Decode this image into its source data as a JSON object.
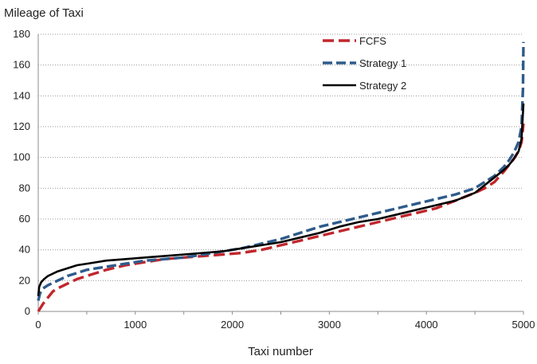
{
  "chart_data": {
    "type": "line",
    "title": "",
    "ylabel": "Mileage of Taxi",
    "xlabel": "Taxi number",
    "xlim": [
      0,
      5000
    ],
    "ylim": [
      0,
      180
    ],
    "x_ticks": [
      "0",
      "1000",
      "2000",
      "3000",
      "4000",
      "5000"
    ],
    "y_ticks": [
      "0",
      "20",
      "40",
      "60",
      "80",
      "100",
      "120",
      "140",
      "160",
      "180"
    ],
    "grid": "horizontal dotted",
    "legend": "top-right",
    "series": [
      {
        "name": "FCFS",
        "color": "#c0272d",
        "style": "dashed",
        "x": [
          0,
          50,
          100,
          150,
          200,
          300,
          400,
          500,
          700,
          900,
          1100,
          1300,
          1500,
          1700,
          1900,
          2100,
          2300,
          2500,
          2700,
          2900,
          3100,
          3300,
          3500,
          3700,
          3900,
          4100,
          4300,
          4500,
          4600,
          4700,
          4800,
          4850,
          4900,
          4950,
          4980,
          5000
        ],
        "y": [
          0,
          5,
          9,
          13,
          15,
          18,
          21,
          23,
          27,
          30,
          32,
          34,
          35,
          36,
          37,
          38,
          40,
          43,
          46,
          49,
          52,
          55,
          58,
          61,
          64,
          67,
          72,
          77,
          80,
          84,
          91,
          95,
          99,
          104,
          110,
          122
        ]
      },
      {
        "name": "Strategy 1",
        "color": "#2e5b8a",
        "style": "dashed",
        "x": [
          0,
          20,
          50,
          100,
          200,
          300,
          400,
          500,
          700,
          900,
          1100,
          1300,
          1500,
          1700,
          1900,
          2100,
          2300,
          2500,
          2700,
          2900,
          3100,
          3300,
          3500,
          3700,
          3900,
          4100,
          4300,
          4500,
          4600,
          4700,
          4800,
          4850,
          4900,
          4950,
          4980,
          4995,
          5000
        ],
        "y": [
          7,
          12,
          15,
          17,
          20,
          23,
          25,
          27,
          29,
          31,
          33,
          34,
          35,
          37,
          39,
          41,
          44,
          47,
          51,
          55,
          58,
          61,
          64,
          67,
          70,
          73,
          76,
          80,
          84,
          88,
          94,
          98,
          103,
          110,
          120,
          145,
          175
        ]
      },
      {
        "name": "Strategy 2",
        "color": "#000000",
        "style": "solid",
        "x": [
          0,
          10,
          30,
          60,
          100,
          200,
          300,
          400,
          500,
          700,
          900,
          1100,
          1300,
          1500,
          1700,
          1900,
          2100,
          2300,
          2500,
          2700,
          2900,
          3100,
          3300,
          3500,
          3700,
          3900,
          4100,
          4300,
          4500,
          4600,
          4700,
          4800,
          4850,
          4900,
          4950,
          4980,
          5000
        ],
        "y": [
          10,
          16,
          19,
          21,
          23,
          26,
          28,
          30,
          31,
          33,
          34,
          35,
          36,
          37,
          38,
          39,
          41,
          43,
          45,
          48,
          51,
          55,
          58,
          60,
          63,
          66,
          69,
          72,
          77,
          82,
          87,
          92,
          95,
          99,
          104,
          112,
          135
        ]
      }
    ]
  }
}
